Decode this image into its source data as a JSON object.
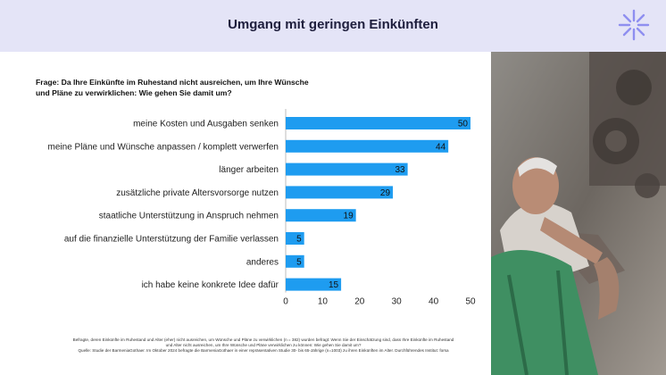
{
  "header": {
    "title": "Umgang mit geringen Einkünften"
  },
  "question": {
    "line1": "Frage: Da Ihre Einkünfte im Ruhestand nicht ausreichen, um Ihre Wünsche",
    "line2": "und Pläne zu verwirklichen: Wie gehen Sie damit um?"
  },
  "chart_data": {
    "type": "bar",
    "orientation": "horizontal",
    "categories": [
      "meine Kosten und Ausgaben senken",
      "meine Pläne und Wünsche anpassen / komplett verwerfen",
      "länger arbeiten",
      "zusätzliche private Altersvorsorge nutzen",
      "staatliche Unterstützung in Anspruch nehmen",
      "auf die finanzielle Unterstützung der Familie verlassen",
      "anderes",
      "ich habe keine konkrete Idee dafür"
    ],
    "values": [
      50,
      44,
      33,
      29,
      19,
      5,
      5,
      15
    ],
    "xlim": [
      0,
      50
    ],
    "xticks": [
      0,
      10,
      20,
      30,
      40,
      50
    ],
    "bar_color": "#1e9cf0",
    "title": "",
    "xlabel": "",
    "ylabel": ""
  },
  "footnote": {
    "line1": "Befragte, deren Einkünfte im Ruhestand und Alter (eher) nicht ausreichen, um Wünsche und Pläne zu verwirklichen (n = 382) wurden befragt: Wenn Sie der Einschätzung sind, dass Ihre Einkünfte im Ruhestand",
    "line2": "und Alter nicht ausreichen, um Ihre Wünsche und Pläne verwirklichen zu können: Wie gehen Sie damit um?",
    "line3": "Quelle: Studie der BarmeniaGothaer. Im Oktober 2024 befragte die BarmeniaGothaer in einer repräsentativen Studie 30- bis 65-Jährige (n=1003) zu ihren Einkünften im Alter. Durchführendes Institut: forsa"
  },
  "colors": {
    "header_bg": "#e4e4f7",
    "title": "#1e1e3c",
    "logo": "#8f8ff0"
  },
  "photo": {
    "icon": "elderly-mechanic-photo"
  }
}
